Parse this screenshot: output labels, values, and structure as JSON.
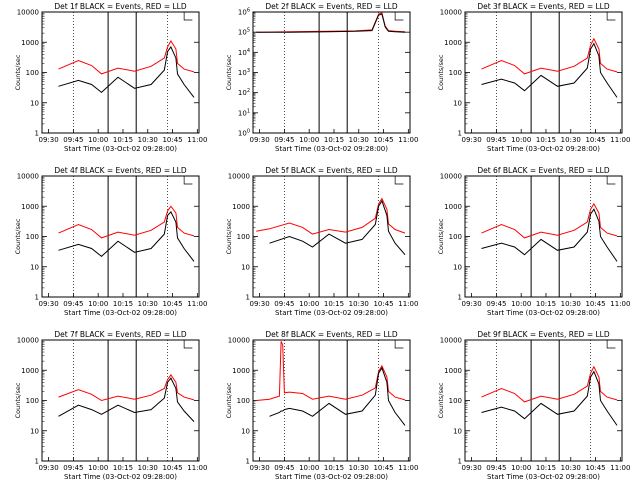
{
  "page": {
    "background": "#ffffff",
    "event_color": "#000000",
    "lld_color": "#ff0000"
  },
  "chart_data": [
    {
      "type": "line",
      "title": "Det 1f BLACK = Events, RED = LLD",
      "xlabel": "Start Time (03-Oct-02 09:28:00)",
      "ylabel": "Counts/sec",
      "x_ticks": [
        "09:30",
        "09:45",
        "10:00",
        "10:15",
        "10:30",
        "10:45",
        "11:00"
      ],
      "y_scale": "log",
      "y_ticks": [
        "1",
        "10",
        "100",
        "1000",
        "10000"
      ],
      "ylim": [
        1,
        10000
      ],
      "x_minutes": [
        0,
        8,
        20,
        28,
        34,
        44,
        54,
        64,
        72,
        74,
        76,
        79,
        80,
        84,
        90
      ],
      "series": [
        {
          "name": "RED = LLD",
          "color": "#ff0000",
          "values": [
            null,
            130,
            250,
            170,
            90,
            140,
            110,
            160,
            300,
            700,
            1100,
            600,
            200,
            130,
            105
          ]
        },
        {
          "name": "BLACK = Events",
          "color": "#000000",
          "values": [
            null,
            35,
            55,
            40,
            22,
            70,
            30,
            40,
            120,
            500,
            700,
            300,
            90,
            40,
            15
          ]
        }
      ]
    },
    {
      "type": "line",
      "title": "Det 2f BLACK = Events, RED = LLD",
      "xlabel": "Start Time (03-Oct-02 09:28:00)",
      "ylabel": "Counts/sec",
      "x_ticks": [
        "09:30",
        "09:45",
        "10:00",
        "10:15",
        "10:30",
        "10:45",
        "11:00"
      ],
      "y_scale": "log",
      "y_ticks": [
        "10^0",
        "10^1",
        "10^2",
        "10^3",
        "10^4",
        "10^5",
        "10^6"
      ],
      "ylim": [
        1,
        1000000
      ],
      "x_minutes": [
        0,
        20,
        44,
        60,
        70,
        74,
        76,
        78,
        80,
        84,
        90
      ],
      "series": [
        {
          "name": "RED = LLD",
          "color": "#ff0000",
          "values": [
            100000,
            105000,
            110000,
            115000,
            130000,
            800000,
            900000,
            200000,
            120000,
            110000,
            105000
          ]
        },
        {
          "name": "BLACK = Events",
          "color": "#000000",
          "values": [
            100000,
            100000,
            105000,
            110000,
            120000,
            700000,
            800000,
            180000,
            110000,
            105000,
            100000
          ]
        }
      ]
    },
    {
      "type": "line",
      "title": "Det 3f BLACK = Events, RED = LLD",
      "xlabel": "Start Time (03-Oct-02 09:28:00)",
      "ylabel": "Counts/sec",
      "x_ticks": [
        "09:30",
        "09:45",
        "10:00",
        "10:15",
        "10:30",
        "10:45",
        "11:00"
      ],
      "y_scale": "log",
      "y_ticks": [
        "1",
        "10",
        "100",
        "1000",
        "10000"
      ],
      "ylim": [
        1,
        10000
      ],
      "x_minutes": [
        0,
        8,
        20,
        28,
        34,
        44,
        54,
        64,
        72,
        74,
        76,
        79,
        80,
        84,
        90
      ],
      "series": [
        {
          "name": "RED = LLD",
          "color": "#ff0000",
          "values": [
            null,
            130,
            250,
            170,
            90,
            140,
            110,
            160,
            300,
            800,
            1300,
            600,
            200,
            130,
            105
          ]
        },
        {
          "name": "BLACK = Events",
          "color": "#000000",
          "values": [
            null,
            40,
            60,
            45,
            25,
            80,
            35,
            45,
            140,
            600,
            900,
            350,
            100,
            45,
            15
          ]
        }
      ]
    },
    {
      "type": "line",
      "title": "Det 4f BLACK = Events, RED = LLD",
      "xlabel": "Start Time (03-Oct-02 09:28:00)",
      "ylabel": "Counts/sec",
      "x_ticks": [
        "09:30",
        "09:45",
        "10:00",
        "10:15",
        "10:30",
        "10:45",
        "11:00"
      ],
      "y_scale": "log",
      "y_ticks": [
        "1",
        "10",
        "100",
        "1000",
        "10000"
      ],
      "ylim": [
        1,
        10000
      ],
      "x_minutes": [
        0,
        8,
        20,
        28,
        34,
        44,
        54,
        64,
        72,
        74,
        76,
        79,
        80,
        84,
        90
      ],
      "series": [
        {
          "name": "RED = LLD",
          "color": "#ff0000",
          "values": [
            null,
            130,
            250,
            170,
            90,
            140,
            110,
            160,
            300,
            700,
            1000,
            600,
            200,
            130,
            105
          ]
        },
        {
          "name": "BLACK = Events",
          "color": "#000000",
          "values": [
            null,
            35,
            55,
            40,
            22,
            70,
            30,
            40,
            120,
            500,
            650,
            300,
            90,
            40,
            15
          ]
        }
      ]
    },
    {
      "type": "line",
      "title": "Det 5f BLACK = Events, RED = LLD",
      "xlabel": "Start Time (03-Oct-02 09:28:00)",
      "ylabel": "Counts/sec",
      "x_ticks": [
        "09:30",
        "09:45",
        "10:00",
        "10:15",
        "10:30",
        "10:45",
        "11:00"
      ],
      "y_scale": "log",
      "y_ticks": [
        "1",
        "10",
        "100",
        "1000",
        "10000"
      ],
      "ylim": [
        1,
        10000
      ],
      "x_minutes": [
        0,
        8,
        20,
        28,
        34,
        44,
        54,
        64,
        72,
        74,
        76,
        79,
        80,
        84,
        90
      ],
      "series": [
        {
          "name": "RED = LLD",
          "color": "#ff0000",
          "values": [
            150,
            180,
            280,
            200,
            120,
            170,
            140,
            200,
            400,
            1200,
            1800,
            800,
            260,
            170,
            130
          ]
        },
        {
          "name": "BLACK = Events",
          "color": "#000000",
          "values": [
            null,
            60,
            100,
            70,
            45,
            120,
            60,
            80,
            250,
            1000,
            1500,
            500,
            150,
            60,
            25
          ]
        }
      ]
    },
    {
      "type": "line",
      "title": "Det 6f BLACK = Events, RED = LLD",
      "xlabel": "Start Time (03-Oct-02 09:28:00)",
      "ylabel": "Counts/sec",
      "x_ticks": [
        "09:30",
        "09:45",
        "10:00",
        "10:15",
        "10:30",
        "10:45",
        "11:00"
      ],
      "y_scale": "log",
      "y_ticks": [
        "1",
        "10",
        "100",
        "1000",
        "10000"
      ],
      "ylim": [
        1,
        10000
      ],
      "x_minutes": [
        0,
        8,
        20,
        28,
        34,
        44,
        54,
        64,
        72,
        74,
        76,
        79,
        80,
        84,
        90
      ],
      "series": [
        {
          "name": "RED = LLD",
          "color": "#ff0000",
          "values": [
            null,
            130,
            250,
            170,
            90,
            140,
            110,
            160,
            300,
            800,
            1200,
            600,
            200,
            130,
            105
          ]
        },
        {
          "name": "BLACK = Events",
          "color": "#000000",
          "values": [
            null,
            40,
            60,
            45,
            25,
            80,
            35,
            45,
            140,
            550,
            800,
            320,
            100,
            45,
            15
          ]
        }
      ]
    },
    {
      "type": "line",
      "title": "Det 7f BLACK = Events, RED = LLD",
      "xlabel": "Start Time (03-Oct-02 09:28:00)",
      "ylabel": "Counts/sec",
      "x_ticks": [
        "09:30",
        "09:45",
        "10:00",
        "10:15",
        "10:30",
        "10:45",
        "11:00"
      ],
      "y_scale": "log",
      "y_ticks": [
        "1",
        "10",
        "100",
        "1000",
        "10000"
      ],
      "ylim": [
        1,
        10000
      ],
      "x_minutes": [
        0,
        8,
        20,
        28,
        34,
        44,
        54,
        64,
        72,
        74,
        76,
        79,
        80,
        84,
        90
      ],
      "series": [
        {
          "name": "RED = LLD",
          "color": "#ff0000",
          "values": [
            null,
            130,
            230,
            160,
            100,
            140,
            110,
            150,
            250,
            500,
            700,
            400,
            180,
            130,
            105
          ]
        },
        {
          "name": "BLACK = Events",
          "color": "#000000",
          "values": [
            null,
            30,
            70,
            50,
            35,
            70,
            40,
            50,
            120,
            400,
            550,
            250,
            90,
            45,
            20
          ]
        }
      ]
    },
    {
      "type": "line",
      "title": "Det 8f BLACK = Events, RED = LLD",
      "xlabel": "Start Time (03-Oct-02 09:28:00)",
      "ylabel": "Counts/sec",
      "x_ticks": [
        "09:30",
        "09:45",
        "10:00",
        "10:15",
        "10:30",
        "10:45",
        "11:00"
      ],
      "y_scale": "log",
      "y_ticks": [
        "1",
        "10",
        "100",
        "1000",
        "10000"
      ],
      "ylim": [
        1,
        10000
      ],
      "x_minutes": [
        0,
        8,
        14,
        15,
        16,
        17,
        20,
        28,
        34,
        44,
        54,
        64,
        72,
        74,
        76,
        79,
        80,
        84,
        90
      ],
      "series": [
        {
          "name": "RED = LLD",
          "color": "#ff0000",
          "values": [
            100,
            110,
            140,
            9000,
            7000,
            180,
            190,
            170,
            110,
            140,
            110,
            150,
            260,
            900,
            1400,
            600,
            200,
            130,
            105
          ]
        },
        {
          "name": "BLACK = Events",
          "color": "#000000",
          "values": [
            null,
            30,
            40,
            45,
            45,
            50,
            55,
            45,
            30,
            80,
            35,
            45,
            150,
            800,
            1200,
            400,
            100,
            40,
            15
          ]
        }
      ]
    },
    {
      "type": "line",
      "title": "Det 9f BLACK = Events, RED = LLD",
      "xlabel": "Start Time (03-Oct-02 09:28:00)",
      "ylabel": "Counts/sec",
      "x_ticks": [
        "09:30",
        "09:45",
        "10:00",
        "10:15",
        "10:30",
        "10:45",
        "11:00"
      ],
      "y_scale": "log",
      "y_ticks": [
        "1",
        "10",
        "100",
        "1000",
        "10000"
      ],
      "ylim": [
        1,
        10000
      ],
      "x_minutes": [
        0,
        8,
        20,
        28,
        34,
        44,
        54,
        64,
        72,
        74,
        76,
        79,
        80,
        84,
        90
      ],
      "series": [
        {
          "name": "RED = LLD",
          "color": "#ff0000",
          "values": [
            null,
            130,
            250,
            170,
            90,
            140,
            110,
            160,
            300,
            800,
            1300,
            600,
            200,
            130,
            105
          ]
        },
        {
          "name": "BLACK = Events",
          "color": "#000000",
          "values": [
            null,
            40,
            60,
            45,
            25,
            80,
            35,
            45,
            140,
            600,
            900,
            350,
            100,
            45,
            15
          ]
        }
      ]
    }
  ]
}
